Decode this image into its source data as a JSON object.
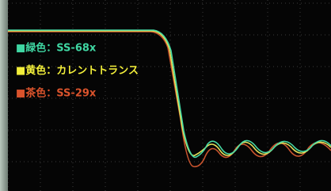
{
  "legend": [
    {
      "label": "■緑色：SS-68x",
      "color": "#3fd6a2"
    },
    {
      "label": "■黄色：カレントトランス",
      "color": "#f2ee3a"
    },
    {
      "label": "■茶色：SS-29x",
      "color": "#d9532c"
    }
  ]
}
